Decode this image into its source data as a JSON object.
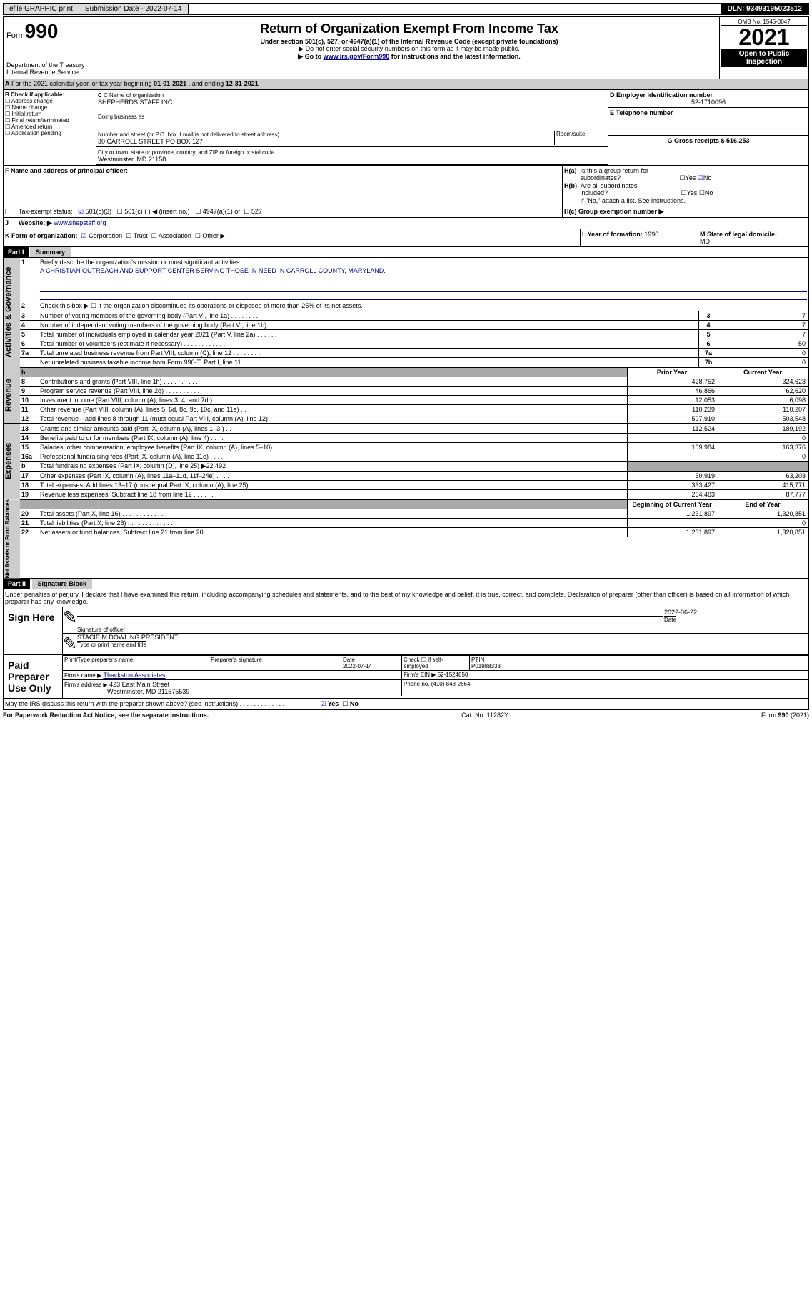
{
  "header": {
    "efile": "efile GRAPHIC print",
    "submission_label": "Submission Date - 2022-07-14",
    "dln": "DLN: 93493195023512"
  },
  "title_block": {
    "form_prefix": "Form",
    "form_num": "990",
    "dept": "Department of the Treasury",
    "irs": "Internal Revenue Service",
    "h1": "Return of Organization Exempt From Income Tax",
    "sub": "Under section 501(c), 527, or 4947(a)(1) of the Internal Revenue Code (except private foundations)",
    "note1": "▶ Do not enter social security numbers on this form as it may be made public.",
    "note2_pre": "▶ Go to ",
    "note2_link": "www.irs.gov/Form990",
    "note2_post": " for instructions and the latest information.",
    "omb": "OMB No. 1545-0047",
    "year": "2021",
    "open": "Open to Public Inspection"
  },
  "line_a": {
    "text_pre": "For the 2021 calendar year, or tax year beginning ",
    "d1": "01-01-2021",
    "text_mid": " , and ending ",
    "d2": "12-31-2021"
  },
  "box_b": {
    "hdr": "B Check if applicable:",
    "opts": [
      "Address change",
      "Name change",
      "Initial return",
      "Final return/terminated",
      "Amended return",
      "Application pending"
    ]
  },
  "box_c": {
    "lbl": "C Name of organization",
    "val": "SHEPHERDS STAFF INC",
    "dba_lbl": "Doing business as",
    "addr_lbl": "Number and street (or P.O. box if mail is not delivered to street address)",
    "room_lbl": "Room/suite",
    "addr": "30 CARROLL STREET PO BOX 127",
    "city_lbl": "City or town, state or province, country, and ZIP or foreign postal code",
    "city": "Westminster, MD  21158"
  },
  "box_d": {
    "lbl": "D Employer identification number",
    "val": "52-1710096"
  },
  "box_e": {
    "lbl": "E Telephone number",
    "val": ""
  },
  "box_g": {
    "lbl": "G Gross receipts $",
    "val": "516,253"
  },
  "box_f": {
    "lbl": "F  Name and address of principal officer:"
  },
  "box_h": {
    "a": "H(a)  Is this a group return for subordinates?",
    "b": "H(b)  Are all subordinates included?",
    "note": "If \"No,\" attach a list. See instructions.",
    "c": "H(c)  Group exemption number ▶"
  },
  "tax_status": {
    "lbl": "Tax-exempt status:",
    "o1": "501(c)(3)",
    "o2": "501(c) (  ) ◀ (insert no.)",
    "o3": "4947(a)(1) or",
    "o4": "527"
  },
  "website": {
    "lbl": "Website: ▶",
    "val": "www.shepstaff.org"
  },
  "box_k": {
    "lbl": "K Form of organization:",
    "opts": [
      "Corporation",
      "Trust",
      "Association",
      "Other ▶"
    ]
  },
  "box_l": {
    "lbl": "L Year of formation:",
    "val": "1990"
  },
  "box_m": {
    "lbl": "M State of legal domicile:",
    "val": "MD"
  },
  "part1": {
    "hdr": "Part I",
    "title": "Summary",
    "sections": {
      "gov": "Activities & Governance",
      "rev": "Revenue",
      "exp": "Expenses",
      "net": "Net Assets or Fund Balances"
    },
    "l1": {
      "t": "Briefly describe the organization's mission or most significant activities:",
      "v": "A CHRISTIAN OUTREACH AND SUPPORT CENTER SERVING THOSE IN NEED IN CARROLL COUNTY, MARYLAND."
    },
    "l2": "Check this box ▶ ☐  if the organization discontinued its operations or disposed of more than 25% of its net assets.",
    "rows_gov": [
      {
        "n": "3",
        "t": "Number of voting members of the governing body (Part VI, line 1a)    .    .    .    .    .    .    .    .",
        "b": "3",
        "v": "7"
      },
      {
        "n": "4",
        "t": "Number of independent voting members of the governing body (Part VI, line 1b)    .    .    .    .    .",
        "b": "4",
        "v": "7"
      },
      {
        "n": "5",
        "t": "Total number of individuals employed in calendar year 2021 (Part V, line 2a)    .    .    .    .    .    .",
        "b": "5",
        "v": "7"
      },
      {
        "n": "6",
        "t": "Total number of volunteers (estimate if necessary)    .    .    .    .    .    .    .    .    .    .    .    .",
        "b": "6",
        "v": "50"
      },
      {
        "n": "7a",
        "t": "Total unrelated business revenue from Part VIII, column (C), line 12    .    .    .    .    .    .    .    .",
        "b": "7a",
        "v": "0"
      },
      {
        "n": "",
        "t": "Net unrelated business taxable income from Form 990-T, Part I, line 11    .    .    .    .    .    .    .",
        "b": "7b",
        "v": "0"
      }
    ],
    "col_hdrs": {
      "b": "b",
      "py": "Prior Year",
      "cy": "Current Year",
      "boy": "Beginning of Current Year",
      "eoy": "End of Year"
    },
    "rows_rev": [
      {
        "n": "8",
        "t": "Contributions and grants (Part VIII, line 1h)    .    .    .    .    .    .    .    .    .    .",
        "py": "428,752",
        "cy": "324,623"
      },
      {
        "n": "9",
        "t": "Program service revenue (Part VIII, line 2g)    .    .    .    .    .    .    .    .    .    .",
        "py": "46,866",
        "cy": "62,620"
      },
      {
        "n": "10",
        "t": "Investment income (Part VIII, column (A), lines 3, 4, and 7d )    .    .    .    .    .",
        "py": "12,053",
        "cy": "6,098"
      },
      {
        "n": "11",
        "t": "Other revenue (Part VIII, column (A), lines 5, 6d, 8c, 9c, 10c, and 11e)    .    .    .",
        "py": "110,239",
        "cy": "110,207"
      },
      {
        "n": "12",
        "t": "Total revenue—add lines 8 through 11 (must equal Part VIII, column (A), line 12)",
        "py": "597,910",
        "cy": "503,548"
      }
    ],
    "rows_exp": [
      {
        "n": "13",
        "t": "Grants and similar amounts paid (Part IX, column (A), lines 1–3 )    .    .    .",
        "py": "112,524",
        "cy": "189,192"
      },
      {
        "n": "14",
        "t": "Benefits paid to or for members (Part IX, column (A), line 4)    .    .    .    .",
        "py": "",
        "cy": "0"
      },
      {
        "n": "15",
        "t": "Salaries, other compensation, employee benefits (Part IX, column (A), lines 5–10)",
        "py": "169,984",
        "cy": "163,376"
      },
      {
        "n": "16a",
        "t": "Professional fundraising fees (Part IX, column (A), line 11e)    .    .    .    .",
        "py": "",
        "cy": "0"
      },
      {
        "n": "b",
        "t": "Total fundraising expenses (Part IX, column (D), line 25) ▶22,492",
        "py": "GRAY",
        "cy": "GRAY"
      },
      {
        "n": "17",
        "t": "Other expenses (Part IX, column (A), lines 11a–11d, 11f–24e)    .    .    .    .",
        "py": "50,919",
        "cy": "63,203"
      },
      {
        "n": "18",
        "t": "Total expenses. Add lines 13–17 (must equal Part IX, column (A), line 25)",
        "py": "333,427",
        "cy": "415,771"
      },
      {
        "n": "19",
        "t": "Revenue less expenses. Subtract line 18 from line 12    .    .    .    .    .    .    .",
        "py": "264,483",
        "cy": "87,777"
      }
    ],
    "rows_net": [
      {
        "n": "20",
        "t": "Total assets (Part X, line 16)    .    .    .    .    .    .    .    .    .    .    .    .    .",
        "py": "1,231,897",
        "cy": "1,320,851"
      },
      {
        "n": "21",
        "t": "Total liabilities (Part X, line 26)    .    .    .    .    .    .    .    .    .    .    .    .    .",
        "py": "",
        "cy": "0"
      },
      {
        "n": "22",
        "t": "Net assets or fund balances. Subtract line 21 from line 20    .    .    .    .    .",
        "py": "1,231,897",
        "cy": "1,320,851"
      }
    ]
  },
  "part2": {
    "hdr": "Part II",
    "title": "Signature Block",
    "decl": "Under penalties of perjury, I declare that I have examined this return, including accompanying schedules and statements, and to the best of my knowledge and belief, it is true, correct, and complete. Declaration of preparer (other than officer) is based on all information of which preparer has any knowledge.",
    "sign_here": "Sign Here",
    "sig_officer": "Signature of officer",
    "date_lbl": "Date",
    "sig_date": "2022-06-22",
    "name_title": "STACIE M DOWLING  PRESIDENT",
    "name_lbl": "Type or print name and title",
    "paid": "Paid Preparer Use Only",
    "prep_cols": {
      "a": "Print/Type preparer's name",
      "b": "Preparer's signature",
      "c": "Date",
      "d": "Check ☐ if self-employed",
      "e": "PTIN"
    },
    "prep_date": "2022-07-14",
    "ptin": "P01988333",
    "firm_name_lbl": "Firm's name      ▶",
    "firm_name": "Thackston Associates",
    "firm_ein_lbl": "Firm's EIN ▶",
    "firm_ein": "52-1524850",
    "firm_addr_lbl": "Firm's address ▶",
    "firm_addr1": "423 East Main Street",
    "firm_addr2": "Westminster, MD  211575539",
    "phone_lbl": "Phone no.",
    "phone": "(410) 848-2664",
    "discuss": "May the IRS discuss this return with the preparer shown above? (see instructions)    .    .    .    .    .    .    .    .    .    .    .    .    ."
  },
  "footer": {
    "a": "For Paperwork Reduction Act Notice, see the separate instructions.",
    "b": "Cat. No. 11282Y",
    "c": "Form 990 (2021)"
  },
  "glyphs": {
    "unchecked": "☐",
    "checked": "☑",
    "yes": "Yes",
    "no": "No"
  }
}
